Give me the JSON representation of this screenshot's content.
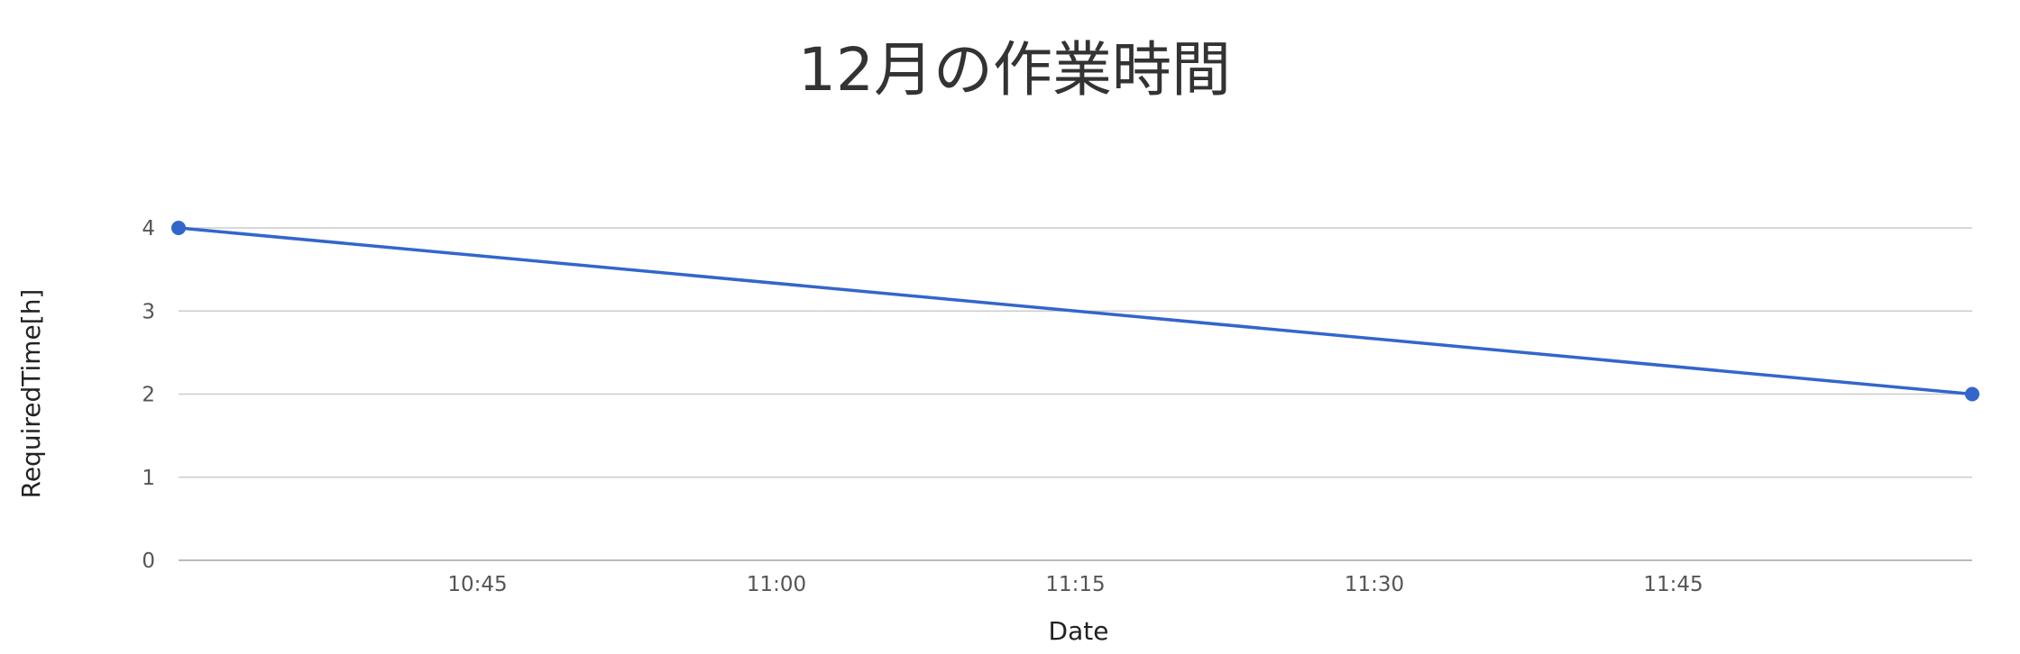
{
  "chart_data": {
    "type": "line",
    "title": "12月の作業時間",
    "xlabel": "Date",
    "ylabel": "RequiredTime[h]",
    "x_axis_type": "time",
    "xlim": [
      "10:30",
      "12:00"
    ],
    "ylim": [
      0,
      4
    ],
    "y_ticks": [
      0,
      1,
      2,
      3,
      4
    ],
    "x_tick_labels": [
      "10:45",
      "11:00",
      "11:15",
      "11:30",
      "11:45"
    ],
    "grid": true,
    "legend": "none",
    "series": [
      {
        "color": "#3366cc",
        "points": [
          {
            "x": "10:30",
            "y": 4
          },
          {
            "x": "12:00",
            "y": 2
          }
        ]
      }
    ]
  },
  "colors": {
    "series": "#3366cc",
    "grid": "#cccccc",
    "title": "#333333",
    "tick": "#555555"
  }
}
